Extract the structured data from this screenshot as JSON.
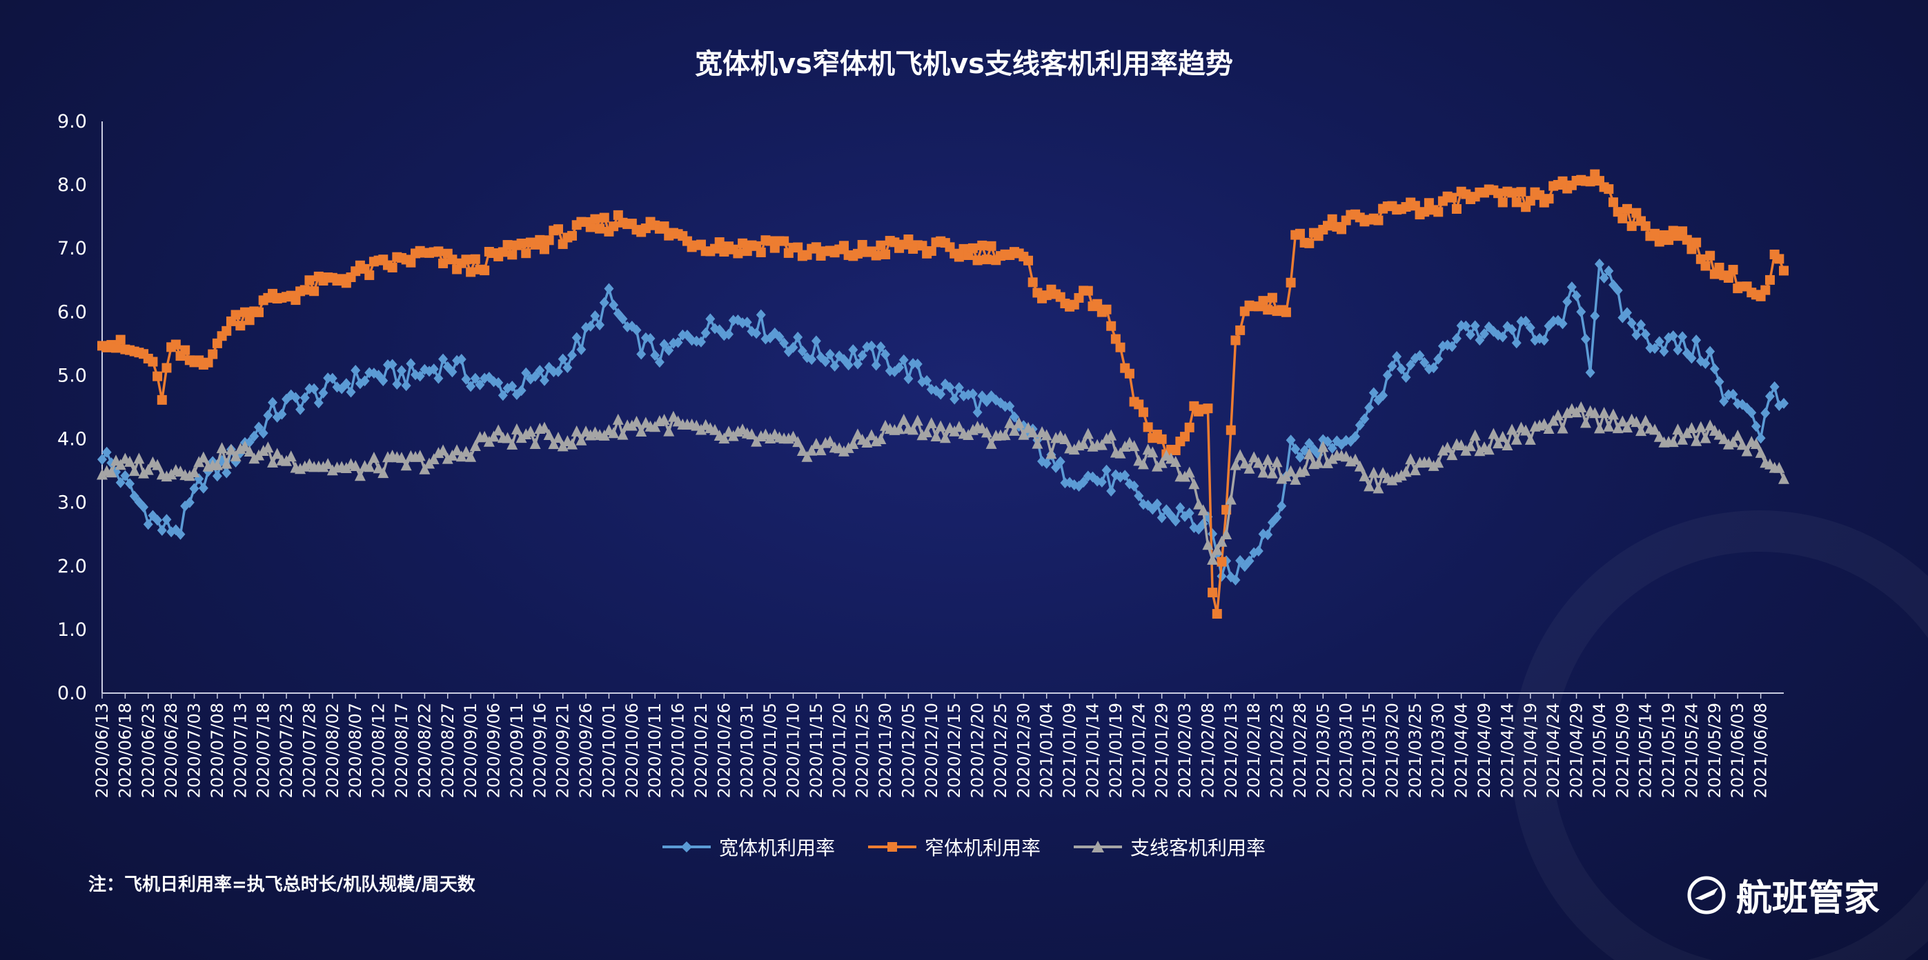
{
  "chart_data": {
    "type": "line",
    "title": "宽体机vs窄体机飞机vs支线客机利用率趋势",
    "ylim": [
      0,
      9
    ],
    "yticks": [
      "0.0",
      "1.0",
      "2.0",
      "3.0",
      "4.0",
      "5.0",
      "6.0",
      "7.0",
      "8.0",
      "9.0"
    ],
    "x_start": "2020/06/13",
    "x_end": "2021/06/13",
    "xtick_labels": [
      "2020/06/13",
      "2020/06/18",
      "2020/06/23",
      "2020/06/28",
      "2020/07/03",
      "2020/07/08",
      "2020/07/13",
      "2020/07/18",
      "2020/07/23",
      "2020/07/28",
      "2020/08/02",
      "2020/08/07",
      "2020/08/12",
      "2020/08/17",
      "2020/08/22",
      "2020/08/27",
      "2020/09/01",
      "2020/09/06",
      "2020/09/11",
      "2020/09/16",
      "2020/09/21",
      "2020/09/26",
      "2020/10/01",
      "2020/10/06",
      "2020/10/11",
      "2020/10/16",
      "2020/10/21",
      "2020/10/26",
      "2020/10/31",
      "2020/11/05",
      "2020/11/10",
      "2020/11/15",
      "2020/11/20",
      "2020/11/25",
      "2020/11/30",
      "2020/12/05",
      "2020/12/10",
      "2020/12/15",
      "2020/12/20",
      "2020/12/25",
      "2020/12/30",
      "2021/01/04",
      "2021/01/09",
      "2021/01/14",
      "2021/01/19",
      "2021/01/24",
      "2021/01/29",
      "2021/02/03",
      "2021/02/08",
      "2021/02/13",
      "2021/02/18",
      "2021/02/23",
      "2021/02/28",
      "2021/03/05",
      "2021/03/10",
      "2021/03/15",
      "2021/03/20",
      "2021/03/25",
      "2021/03/30",
      "2021/04/04",
      "2021/04/09",
      "2021/04/14",
      "2021/04/19",
      "2021/04/24",
      "2021/04/29",
      "2021/05/04",
      "2021/05/09",
      "2021/05/14",
      "2021/05/19",
      "2021/05/24",
      "2021/05/29",
      "2021/06/03",
      "2021/06/08"
    ],
    "series": [
      {
        "name": "宽体机利用率",
        "color": "#5b9bd5",
        "marker": "diamond",
        "anchors": [
          [
            "2020/06/13",
            3.8
          ],
          [
            "2020/06/16",
            3.5
          ],
          [
            "2020/06/21",
            3.0
          ],
          [
            "2020/06/26",
            2.6
          ],
          [
            "2020/06/30",
            2.6
          ],
          [
            "2020/07/05",
            3.4
          ],
          [
            "2020/07/10",
            3.6
          ],
          [
            "2020/07/15",
            4.0
          ],
          [
            "2020/07/20",
            4.4
          ],
          [
            "2020/07/25",
            4.6
          ],
          [
            "2020/08/02",
            4.8
          ],
          [
            "2020/08/10",
            5.0
          ],
          [
            "2020/08/20",
            5.0
          ],
          [
            "2020/08/27",
            5.2
          ],
          [
            "2020/09/03",
            4.9
          ],
          [
            "2020/09/10",
            4.8
          ],
          [
            "2020/09/18",
            5.0
          ],
          [
            "2020/09/26",
            5.6
          ],
          [
            "2020/10/01",
            6.2
          ],
          [
            "2020/10/06",
            5.6
          ],
          [
            "2020/10/13",
            5.3
          ],
          [
            "2020/10/18",
            5.6
          ],
          [
            "2020/10/25",
            5.8
          ],
          [
            "2020/10/31",
            5.9
          ],
          [
            "2020/11/05",
            5.7
          ],
          [
            "2020/11/12",
            5.4
          ],
          [
            "2020/11/20",
            5.3
          ],
          [
            "2020/11/28",
            5.3
          ],
          [
            "2020/12/05",
            5.1
          ],
          [
            "2020/12/12",
            4.8
          ],
          [
            "2020/12/20",
            4.6
          ],
          [
            "2020/12/27",
            4.4
          ],
          [
            "2021/01/01",
            4.0
          ],
          [
            "2021/01/06",
            3.5
          ],
          [
            "2021/01/13",
            3.4
          ],
          [
            "2021/01/20",
            3.3
          ],
          [
            "2021/01/27",
            2.9
          ],
          [
            "2021/02/02",
            2.8
          ],
          [
            "2021/02/08",
            2.6
          ],
          [
            "2021/02/10",
            2.1
          ],
          [
            "2021/02/13",
            1.8
          ],
          [
            "2021/02/18",
            2.3
          ],
          [
            "2021/02/23",
            2.8
          ],
          [
            "2021/02/26",
            3.8
          ],
          [
            "2021/03/05",
            3.9
          ],
          [
            "2021/03/10",
            4.0
          ],
          [
            "2021/03/15",
            4.5
          ],
          [
            "2021/03/20",
            5.1
          ],
          [
            "2021/03/30",
            5.2
          ],
          [
            "2021/04/04",
            5.8
          ],
          [
            "2021/04/10",
            5.6
          ],
          [
            "2021/04/19",
            5.7
          ],
          [
            "2021/04/25",
            5.7
          ],
          [
            "2021/04/29",
            6.4
          ],
          [
            "2021/05/02",
            5.2
          ],
          [
            "2021/05/04",
            6.8
          ],
          [
            "2021/05/09",
            6.0
          ],
          [
            "2021/05/14",
            5.6
          ],
          [
            "2021/05/20",
            5.5
          ],
          [
            "2021/05/28",
            5.3
          ],
          [
            "2021/05/31",
            4.6
          ],
          [
            "2021/06/05",
            4.6
          ],
          [
            "2021/06/08",
            4.1
          ],
          [
            "2021/06/11",
            4.8
          ],
          [
            "2021/06/13",
            4.6
          ]
        ]
      },
      {
        "name": "窄体机利用率",
        "color": "#ed7d31",
        "marker": "square",
        "anchors": [
          [
            "2020/06/13",
            5.6
          ],
          [
            "2020/06/18",
            5.4
          ],
          [
            "2020/06/23",
            5.3
          ],
          [
            "2020/06/26",
            4.7
          ],
          [
            "2020/06/28",
            5.4
          ],
          [
            "2020/07/03",
            5.2
          ],
          [
            "2020/07/08",
            5.4
          ],
          [
            "2020/07/10",
            5.8
          ],
          [
            "2020/07/15",
            6.0
          ],
          [
            "2020/07/20",
            6.2
          ],
          [
            "2020/07/25",
            6.3
          ],
          [
            "2020/08/02",
            6.5
          ],
          [
            "2020/08/12",
            6.7
          ],
          [
            "2020/08/22",
            6.9
          ],
          [
            "2020/09/01",
            6.7
          ],
          [
            "2020/09/08",
            6.9
          ],
          [
            "2020/09/16",
            7.1
          ],
          [
            "2020/09/26",
            7.3
          ],
          [
            "2020/10/04",
            7.45
          ],
          [
            "2020/10/12",
            7.3
          ],
          [
            "2020/10/20",
            7.1
          ],
          [
            "2020/10/30",
            7.0
          ],
          [
            "2020/11/05",
            7.1
          ],
          [
            "2020/11/15",
            6.9
          ],
          [
            "2020/11/25",
            6.95
          ],
          [
            "2020/12/05",
            7.05
          ],
          [
            "2020/12/15",
            6.95
          ],
          [
            "2020/12/25",
            6.95
          ],
          [
            "2020/12/30",
            6.8
          ],
          [
            "2021/01/03",
            6.3
          ],
          [
            "2021/01/08",
            6.2
          ],
          [
            "2021/01/15",
            6.2
          ],
          [
            "2021/01/19",
            5.6
          ],
          [
            "2021/01/23",
            4.7
          ],
          [
            "2021/01/27",
            4.0
          ],
          [
            "2021/02/01",
            3.7
          ],
          [
            "2021/02/05",
            4.5
          ],
          [
            "2021/02/08",
            4.4
          ],
          [
            "2021/02/09",
            1.6
          ],
          [
            "2021/02/10",
            1.2
          ],
          [
            "2021/02/12",
            2.9
          ],
          [
            "2021/02/14",
            5.5
          ],
          [
            "2021/02/16",
            6.1
          ],
          [
            "2021/02/25",
            6.1
          ],
          [
            "2021/02/27",
            7.1
          ],
          [
            "2021/03/04",
            7.3
          ],
          [
            "2021/03/10",
            7.4
          ],
          [
            "2021/03/15",
            7.4
          ],
          [
            "2021/03/22",
            7.7
          ],
          [
            "2021/03/30",
            7.6
          ],
          [
            "2021/04/04",
            7.8
          ],
          [
            "2021/04/09",
            7.8
          ],
          [
            "2021/04/19",
            7.75
          ],
          [
            "2021/04/25",
            7.9
          ],
          [
            "2021/04/30",
            8.1
          ],
          [
            "2021/05/04",
            8.1
          ],
          [
            "2021/05/09",
            7.6
          ],
          [
            "2021/05/14",
            7.3
          ],
          [
            "2021/05/19",
            7.2
          ],
          [
            "2021/05/24",
            7.1
          ],
          [
            "2021/05/29",
            6.7
          ],
          [
            "2021/06/03",
            6.5
          ],
          [
            "2021/06/08",
            6.2
          ],
          [
            "2021/06/10",
            6.4
          ],
          [
            "2021/06/11",
            6.9
          ],
          [
            "2021/06/13",
            6.6
          ]
        ]
      },
      {
        "name": "支线客机利用率",
        "color": "#a5a5a5",
        "marker": "triangle",
        "anchors": [
          [
            "2020/06/13",
            3.5
          ],
          [
            "2020/06/20",
            3.6
          ],
          [
            "2020/06/30",
            3.5
          ],
          [
            "2020/07/08",
            3.7
          ],
          [
            "2020/07/15",
            3.8
          ],
          [
            "2020/07/22",
            3.7
          ],
          [
            "2020/07/30",
            3.6
          ],
          [
            "2020/08/06",
            3.5
          ],
          [
            "2020/08/14",
            3.6
          ],
          [
            "2020/08/22",
            3.65
          ],
          [
            "2020/08/30",
            3.75
          ],
          [
            "2020/09/04",
            4.0
          ],
          [
            "2020/09/14",
            4.05
          ],
          [
            "2020/09/24",
            4.0
          ],
          [
            "2020/10/04",
            4.2
          ],
          [
            "2020/10/14",
            4.25
          ],
          [
            "2020/10/24",
            4.05
          ],
          [
            "2020/11/03",
            4.0
          ],
          [
            "2020/11/13",
            3.85
          ],
          [
            "2020/11/23",
            3.9
          ],
          [
            "2020/12/03",
            4.2
          ],
          [
            "2020/12/13",
            4.15
          ],
          [
            "2020/12/23",
            4.05
          ],
          [
            "2020/12/30",
            4.2
          ],
          [
            "2021/01/05",
            3.9
          ],
          [
            "2021/01/15",
            4.0
          ],
          [
            "2021/01/22",
            3.8
          ],
          [
            "2021/01/30",
            3.6
          ],
          [
            "2021/02/05",
            3.4
          ],
          [
            "2021/02/09",
            2.1
          ],
          [
            "2021/02/12",
            2.6
          ],
          [
            "2021/02/14",
            3.7
          ],
          [
            "2021/02/20",
            3.6
          ],
          [
            "2021/02/26",
            3.4
          ],
          [
            "2021/03/02",
            3.7
          ],
          [
            "2021/03/10",
            3.8
          ],
          [
            "2021/03/15",
            3.3
          ],
          [
            "2021/03/22",
            3.5
          ],
          [
            "2021/03/30",
            3.7
          ],
          [
            "2021/04/04",
            3.9
          ],
          [
            "2021/04/14",
            4.0
          ],
          [
            "2021/04/24",
            4.2
          ],
          [
            "2021/04/30",
            4.4
          ],
          [
            "2021/05/04",
            4.3
          ],
          [
            "2021/05/10",
            4.3
          ],
          [
            "2021/05/18",
            4.0
          ],
          [
            "2021/05/28",
            4.1
          ],
          [
            "2021/06/05",
            3.9
          ],
          [
            "2021/06/13",
            3.5
          ]
        ]
      }
    ],
    "legend_position": "bottom",
    "grid": false
  },
  "note": "注：飞机日利用率=执飞总时长/机队规模/周天数",
  "brand": "航班管家"
}
